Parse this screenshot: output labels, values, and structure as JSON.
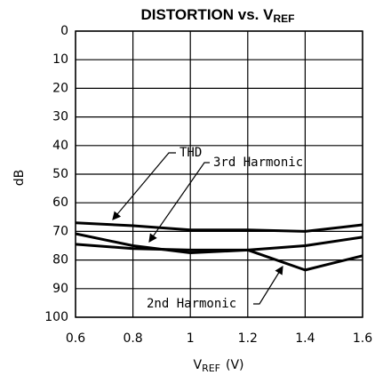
{
  "chart_data": {
    "type": "line",
    "title": {
      "text": "DISTORTION vs. V",
      "subscript": "REF"
    },
    "x_label": {
      "text": "V",
      "subscript": "REF",
      "unit": "(V)"
    },
    "y_label": "dB",
    "x": [
      0.6,
      0.8,
      1.0,
      1.2,
      1.4,
      1.6
    ],
    "series": [
      {
        "name": "THD",
        "color": "#000000",
        "values": [
          67,
          68,
          69.5,
          69.5,
          70,
          67.7
        ]
      },
      {
        "name": "3rd Harmonic",
        "color": "#000000",
        "values": [
          70.8,
          75,
          77.5,
          76.5,
          75,
          72
        ]
      },
      {
        "name": "2nd Harmonic",
        "color": "#000000",
        "values": [
          74.5,
          76,
          76.5,
          76.5,
          83.5,
          78.5
        ]
      }
    ],
    "xlim": [
      0.6,
      1.6
    ],
    "xticks": [
      0.6,
      0.8,
      1,
      1.2,
      1.4,
      1.6
    ],
    "ylim": [
      0,
      100
    ],
    "yticks": [
      0,
      10,
      20,
      30,
      40,
      50,
      60,
      70,
      80,
      90,
      100
    ],
    "y_inverted": true,
    "grid": true
  }
}
